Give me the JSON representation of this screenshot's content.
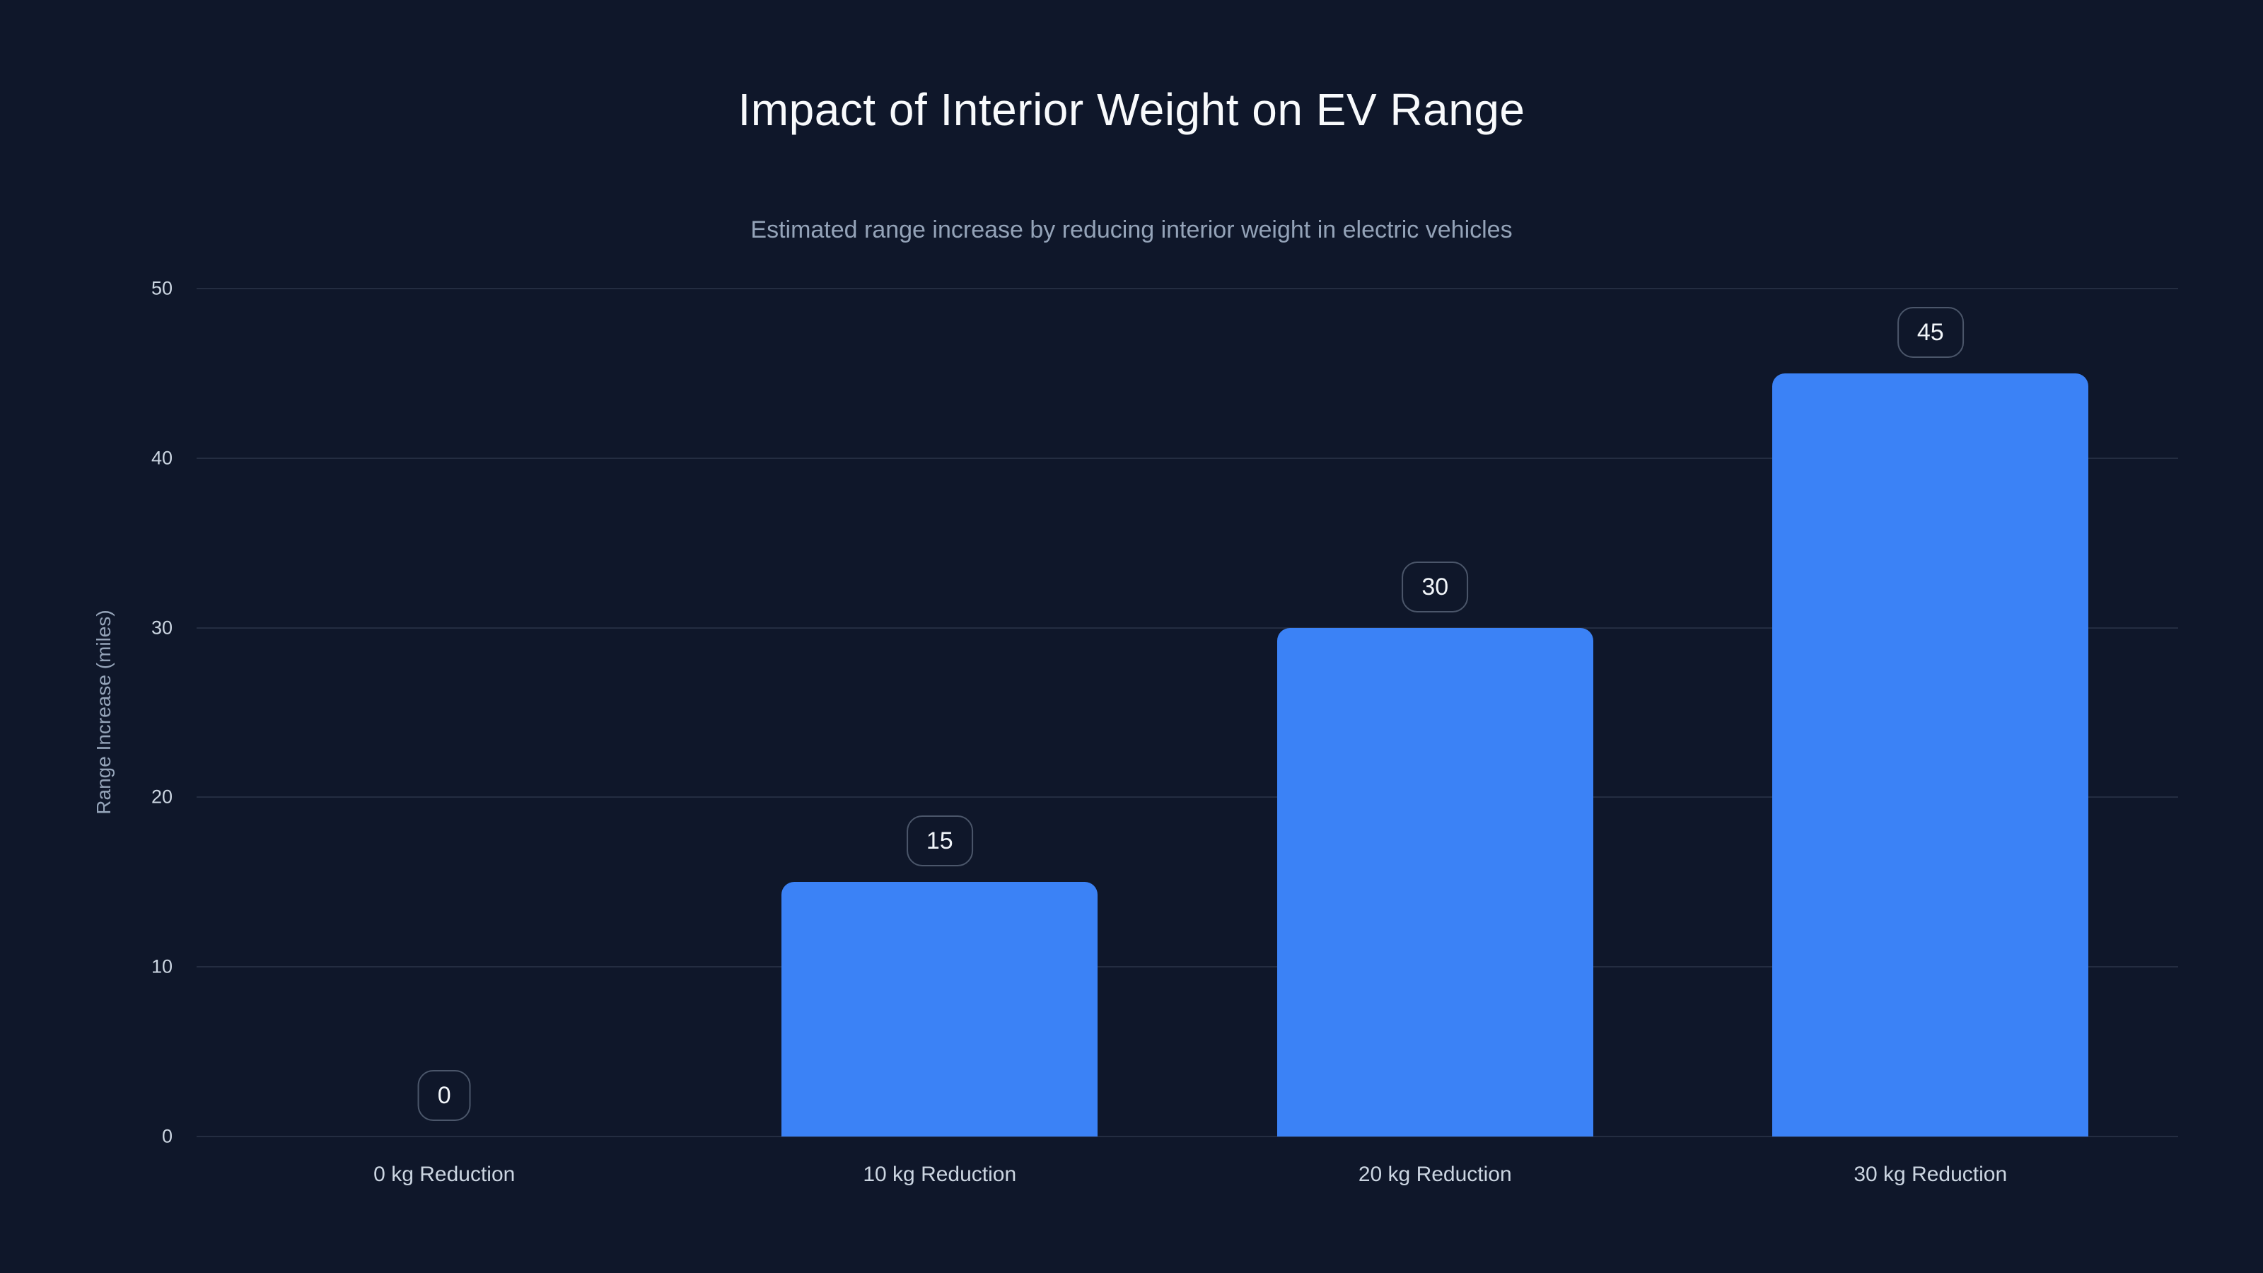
{
  "chart_data": {
    "type": "bar",
    "title": "Impact of Interior Weight on EV Range",
    "subtitle": "Estimated range increase by reducing interior weight in electric vehicles",
    "categories": [
      "0 kg Reduction",
      "10 kg Reduction",
      "20 kg Reduction",
      "30 kg Reduction"
    ],
    "values": [
      0,
      15,
      30,
      45
    ],
    "value_labels": [
      "0",
      "15",
      "30",
      "45"
    ],
    "xlabel": "",
    "ylabel": "Range Increase (miles)",
    "ylim": [
      0,
      50
    ],
    "yticks": [
      0,
      10,
      20,
      30,
      40,
      50
    ],
    "grid": "horizontal-only",
    "legend": "none",
    "colors": {
      "background": "#0f172a",
      "bar": "#3b82f6",
      "gridline": "rgba(148,163,184,0.16)",
      "title_text": "#f8fafc",
      "subtitle_text": "#94a3b8",
      "tick_text": "#cbd5e1",
      "axis_title_text": "#94a3b8",
      "xlabel_text": "#cbd5e1",
      "badge_border": "rgba(148,163,184,0.45)",
      "badge_text": "#f1f5f9"
    }
  }
}
